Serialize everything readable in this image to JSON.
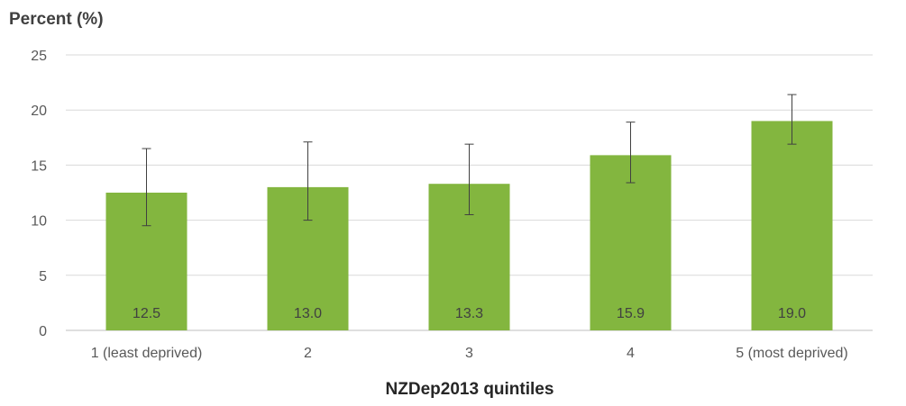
{
  "chart_data": {
    "type": "bar",
    "ylabel": "Percent (%)",
    "xlabel": "NZDep2013 quintiles",
    "categories": [
      "1 (least deprived)",
      "2",
      "3",
      "4",
      "5 (most deprived)"
    ],
    "values": [
      12.5,
      13.0,
      13.3,
      15.9,
      19.0
    ],
    "value_labels": [
      "12.5",
      "13.0",
      "13.3",
      "15.9",
      "19.0"
    ],
    "error_low": [
      9.5,
      10.0,
      10.5,
      13.4,
      16.9
    ],
    "error_high": [
      16.5,
      17.1,
      16.9,
      18.9,
      21.4
    ],
    "ylim": [
      0,
      25
    ],
    "yticks": [
      0,
      5,
      10,
      15,
      20,
      25
    ],
    "ytick_labels": [
      "0",
      "5",
      "10",
      "15",
      "20",
      "25"
    ],
    "grid": true,
    "legend": "none",
    "colors": {
      "bar": "#83b63f",
      "grid": "#d9d9d9",
      "axis": "#bfbfbf",
      "error_bar": "#404040"
    }
  }
}
